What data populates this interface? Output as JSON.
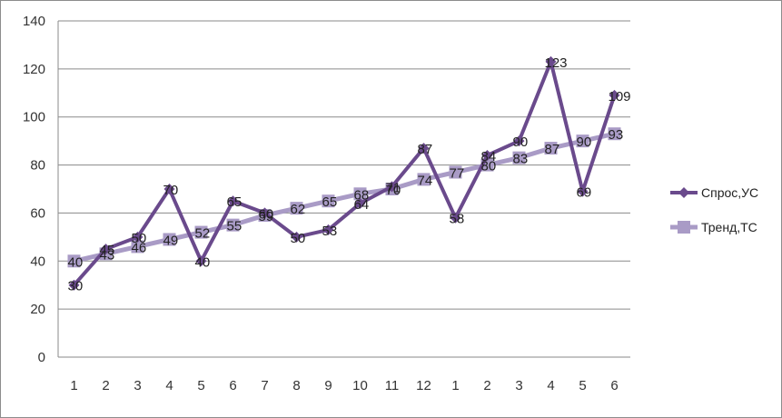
{
  "chart_data": {
    "type": "line",
    "categories": [
      "1",
      "2",
      "3",
      "4",
      "5",
      "6",
      "7",
      "8",
      "9",
      "10",
      "11",
      "12",
      "1",
      "2",
      "3",
      "4",
      "5",
      "6"
    ],
    "ylim": [
      0,
      140
    ],
    "yticks": [
      "0",
      "20",
      "40",
      "60",
      "80",
      "100",
      "120",
      "140"
    ],
    "grid": true,
    "legend_position": "right",
    "series": [
      {
        "name": "Спрос,УС",
        "color": "#6a4a8c",
        "marker": "diamond",
        "values": [
          30,
          45,
          50,
          70,
          40,
          65,
          60,
          50,
          53,
          64,
          71,
          87,
          58,
          84,
          90,
          123,
          69,
          109
        ],
        "labels": [
          "30",
          "45",
          "50",
          "70",
          "40",
          "65",
          "60",
          "50",
          "53",
          "64",
          "71",
          "87",
          "58",
          "84",
          "90",
          "123",
          "69",
          "109"
        ]
      },
      {
        "name": "Тренд,ТС",
        "color": "#a99bc6",
        "marker": "square",
        "values": [
          40,
          43,
          46,
          49,
          52,
          55,
          59,
          62,
          65,
          68,
          70,
          74,
          77,
          80,
          83,
          87,
          90,
          93
        ],
        "labels": [
          "40",
          "43",
          "46",
          "49",
          "52",
          "55",
          "59",
          "62",
          "65",
          "68",
          "70",
          "74",
          "77",
          "80",
          "83",
          "87",
          "90",
          "93"
        ]
      }
    ]
  }
}
